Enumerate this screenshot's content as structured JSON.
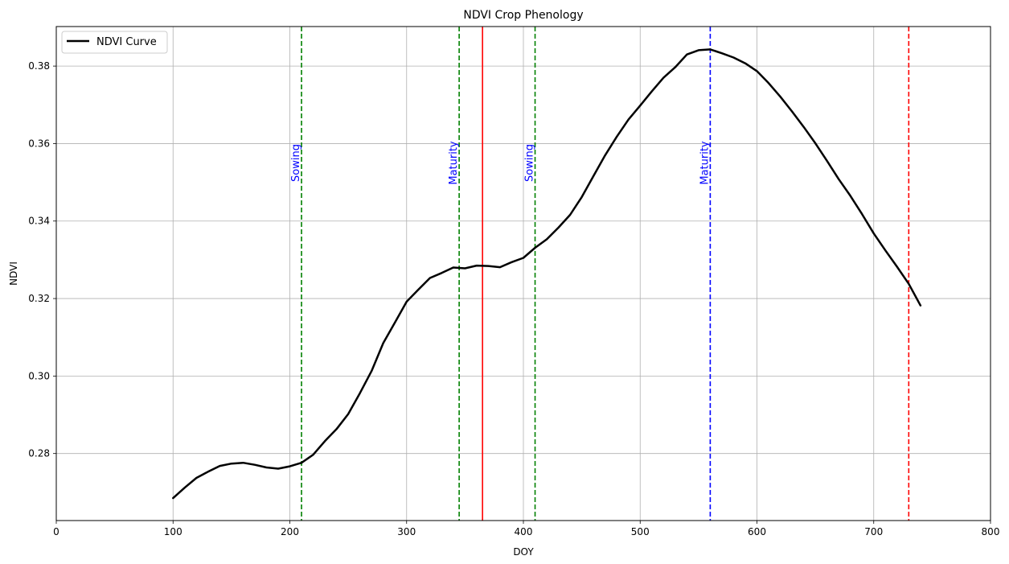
{
  "chart_data": {
    "type": "line",
    "title": "NDVI Crop Phenology",
    "xlabel": "DOY",
    "ylabel": "NDVI",
    "xlim": [
      0,
      800
    ],
    "ylim": [
      0.2627,
      0.3902
    ],
    "xticks": [
      0,
      100,
      200,
      300,
      400,
      500,
      600,
      700,
      800
    ],
    "yticks": [
      0.28,
      0.3,
      0.32,
      0.34,
      0.36,
      0.38
    ],
    "xtick_labels": [
      "0",
      "100",
      "200",
      "300",
      "400",
      "500",
      "600",
      "700",
      "800"
    ],
    "ytick_labels": [
      "0.28",
      "0.30",
      "0.32",
      "0.34",
      "0.36",
      "0.38"
    ],
    "grid": true,
    "legend": {
      "position": "top-left",
      "entries": [
        "NDVI Curve"
      ]
    },
    "series": [
      {
        "name": "NDVI Curve",
        "color": "#000000",
        "x": [
          100,
          110,
          120,
          130,
          140,
          150,
          160,
          170,
          180,
          190,
          200,
          210,
          220,
          230,
          240,
          250,
          260,
          270,
          280,
          290,
          300,
          310,
          320,
          330,
          340,
          350,
          360,
          370,
          380,
          390,
          400,
          410,
          420,
          430,
          440,
          450,
          460,
          470,
          480,
          490,
          500,
          510,
          520,
          530,
          540,
          550,
          560,
          570,
          580,
          590,
          600,
          610,
          620,
          630,
          640,
          650,
          660,
          670,
          680,
          690,
          700,
          710,
          720,
          730,
          740
        ],
        "y": [
          0.2685,
          0.2712,
          0.2737,
          0.2753,
          0.2768,
          0.2774,
          0.2776,
          0.2771,
          0.2764,
          0.2761,
          0.2767,
          0.2776,
          0.2797,
          0.2832,
          0.2863,
          0.2902,
          0.2956,
          0.3013,
          0.3085,
          0.3138,
          0.3192,
          0.3223,
          0.3253,
          0.3266,
          0.328,
          0.3278,
          0.3285,
          0.3284,
          0.3281,
          0.3294,
          0.3305,
          0.3331,
          0.3353,
          0.3383,
          0.3416,
          0.3462,
          0.3516,
          0.357,
          0.3618,
          0.3662,
          0.3698,
          0.3735,
          0.377,
          0.3797,
          0.383,
          0.3841,
          0.3843,
          0.3833,
          0.3822,
          0.3807,
          0.3787,
          0.3756,
          0.3721,
          0.3683,
          0.3643,
          0.3601,
          0.3555,
          0.3508,
          0.3465,
          0.3418,
          0.3368,
          0.3324,
          0.3282,
          0.3238,
          0.3182
        ]
      }
    ],
    "vertical_lines": [
      {
        "x": 210,
        "color": "#008000",
        "style": "dashed",
        "label": "Sowing"
      },
      {
        "x": 345,
        "color": "#008000",
        "style": "dashed",
        "label": "Maturity"
      },
      {
        "x": 365,
        "color": "#ff0000",
        "style": "solid",
        "label": ""
      },
      {
        "x": 410,
        "color": "#008000",
        "style": "dashed",
        "label": "Sowing"
      },
      {
        "x": 560,
        "color": "#0000ff",
        "style": "dashed",
        "label": "Maturity"
      },
      {
        "x": 730,
        "color": "#ff0000",
        "style": "dashed",
        "label": ""
      }
    ],
    "annotation_color": "#0000ff",
    "annotation_y": 0.355
  }
}
